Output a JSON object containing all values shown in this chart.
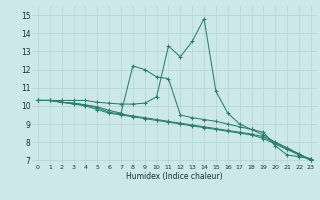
{
  "xlabel": "Humidex (Indice chaleur)",
  "bg_color": "#cce8e8",
  "grid_color": "#b0d4d4",
  "line_color": "#2d7d6e",
  "xlim": [
    -0.5,
    23.5
  ],
  "ylim": [
    6.8,
    15.5
  ],
  "xticks": [
    0,
    1,
    2,
    3,
    4,
    5,
    6,
    7,
    8,
    9,
    10,
    11,
    12,
    13,
    14,
    15,
    16,
    17,
    18,
    19,
    20,
    21,
    22,
    23
  ],
  "yticks": [
    7,
    8,
    9,
    10,
    11,
    12,
    13,
    14,
    15
  ],
  "series": [
    [
      10.3,
      10.3,
      10.3,
      10.3,
      10.3,
      10.2,
      10.15,
      10.1,
      10.1,
      10.15,
      10.5,
      13.3,
      12.7,
      13.55,
      14.8,
      10.8,
      9.6,
      9.0,
      8.7,
      8.55,
      7.8,
      7.3,
      7.2,
      7.1
    ],
    [
      10.3,
      10.3,
      10.2,
      10.15,
      10.05,
      9.95,
      9.75,
      9.6,
      12.2,
      12.0,
      11.6,
      11.5,
      9.5,
      9.35,
      9.25,
      9.15,
      9.0,
      8.85,
      8.7,
      8.4,
      8.0,
      7.7,
      7.35,
      7.0
    ],
    [
      10.3,
      10.3,
      10.2,
      10.15,
      10.05,
      9.9,
      9.65,
      9.55,
      9.45,
      9.35,
      9.25,
      9.15,
      9.05,
      8.95,
      8.85,
      8.75,
      8.65,
      8.55,
      8.45,
      8.3,
      7.95,
      7.65,
      7.35,
      7.05
    ],
    [
      10.3,
      10.3,
      10.2,
      10.1,
      10.0,
      9.8,
      9.6,
      9.5,
      9.4,
      9.3,
      9.2,
      9.1,
      9.0,
      8.9,
      8.8,
      8.7,
      8.6,
      8.5,
      8.4,
      8.2,
      7.9,
      7.6,
      7.3,
      7.0
    ]
  ]
}
